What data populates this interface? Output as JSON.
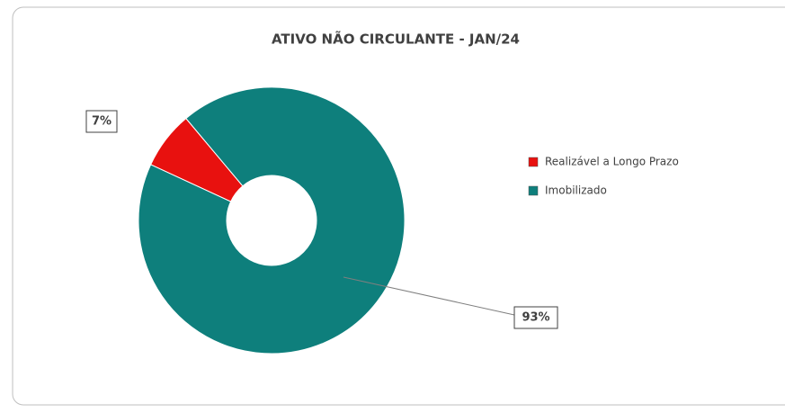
{
  "chart_data": {
    "type": "donut",
    "title": "ATIVO NÃO CIRCULANTE - JAN/24",
    "categories": [
      "Realizável a Longo Prazo",
      "Imobilizado"
    ],
    "values": [
      7,
      93
    ],
    "value_labels": [
      "7%",
      "93%"
    ],
    "colors": [
      "#e8110f",
      "#0e7f7c"
    ],
    "legend": "right"
  }
}
